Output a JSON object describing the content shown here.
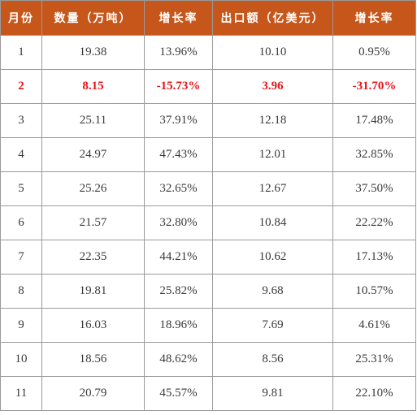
{
  "table": {
    "headers": [
      "月份",
      "数量（万吨）",
      "增长率",
      "出口额（亿美元）",
      "增长率"
    ],
    "rows": [
      {
        "month": "1",
        "qty": "19.38",
        "qty_growth": "13.96%",
        "value": "10.10",
        "value_growth": "0.95%",
        "highlight": false
      },
      {
        "month": "2",
        "qty": "8.15",
        "qty_growth": "-15.73%",
        "value": "3.96",
        "value_growth": "-31.70%",
        "highlight": true
      },
      {
        "month": "3",
        "qty": "25.11",
        "qty_growth": "37.91%",
        "value": "12.18",
        "value_growth": "17.48%",
        "highlight": false
      },
      {
        "month": "4",
        "qty": "24.97",
        "qty_growth": "47.43%",
        "value": "12.01",
        "value_growth": "32.85%",
        "highlight": false
      },
      {
        "month": "5",
        "qty": "25.26",
        "qty_growth": "32.65%",
        "value": "12.67",
        "value_growth": "37.50%",
        "highlight": false
      },
      {
        "month": "6",
        "qty": "21.57",
        "qty_growth": "32.80%",
        "value": "10.84",
        "value_growth": "22.22%",
        "highlight": false
      },
      {
        "month": "7",
        "qty": "22.35",
        "qty_growth": "44.21%",
        "value": "10.62",
        "value_growth": "17.13%",
        "highlight": false
      },
      {
        "month": "8",
        "qty": "19.81",
        "qty_growth": "25.82%",
        "value": "9.68",
        "value_growth": "10.57%",
        "highlight": false
      },
      {
        "month": "9",
        "qty": "16.03",
        "qty_growth": "18.96%",
        "value": "7.69",
        "value_growth": "4.61%",
        "highlight": false
      },
      {
        "month": "10",
        "qty": "18.56",
        "qty_growth": "48.62%",
        "value": "8.56",
        "value_growth": "25.31%",
        "highlight": false
      },
      {
        "month": "11",
        "qty": "20.79",
        "qty_growth": "45.57%",
        "value": "9.81",
        "value_growth": "22.10%",
        "highlight": false
      }
    ]
  },
  "colors": {
    "header_bg": "#c7561a",
    "header_text": "#ffffff",
    "highlight_text": "#e8141a",
    "body_text": "#3a3a3a"
  }
}
